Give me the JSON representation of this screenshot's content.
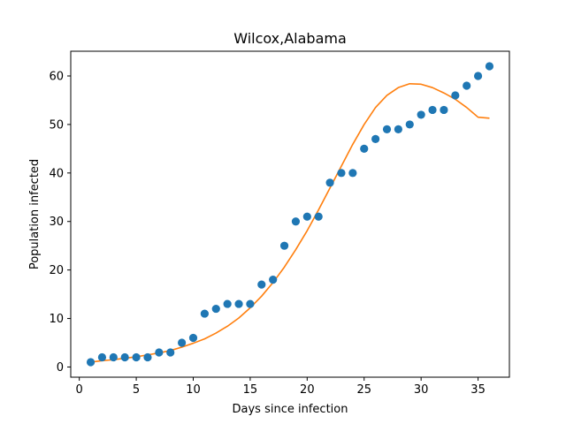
{
  "chart_data": {
    "type": "scatter",
    "title": "Wilcox,Alabama",
    "xlabel": "Days since infection",
    "ylabel": "Population infected",
    "xlim": [
      -0.75,
      37.75
    ],
    "ylim": [
      -2.1,
      65.1
    ],
    "xticks": [
      0,
      5,
      10,
      15,
      20,
      25,
      30,
      35
    ],
    "yticks": [
      0,
      10,
      20,
      30,
      40,
      50,
      60
    ],
    "grid": false,
    "colors": {
      "points": "#1f77b4",
      "fit": "#ff7f0e"
    },
    "series": [
      {
        "kind": "scatter",
        "x": [
          1,
          2,
          3,
          4,
          5,
          6,
          7,
          8,
          9,
          10,
          11,
          12,
          13,
          14,
          15,
          16,
          17,
          18,
          19,
          20,
          21,
          22,
          23,
          24,
          25,
          26,
          27,
          28,
          29,
          30,
          31,
          32,
          33,
          34,
          35,
          36
        ],
        "y": [
          1,
          2,
          2,
          2,
          2,
          2,
          3,
          3,
          5,
          6,
          11,
          12,
          13,
          13,
          13,
          17,
          18,
          25,
          30,
          31,
          31,
          38,
          40,
          40,
          45,
          47,
          49,
          49,
          50,
          52,
          53,
          53,
          56,
          58,
          60,
          62
        ]
      },
      {
        "kind": "line",
        "x": [
          1,
          2,
          3,
          4,
          5,
          6,
          7,
          8,
          9,
          10,
          11,
          12,
          13,
          14,
          15,
          16,
          17,
          18,
          19,
          20,
          21,
          22,
          23,
          24,
          25,
          26,
          27,
          28,
          29,
          30,
          31,
          32,
          33,
          34,
          35,
          36
        ],
        "y": [
          1.0,
          1.3,
          1.5,
          1.8,
          2.1,
          2.5,
          2.9,
          3.4,
          4.1,
          4.9,
          5.8,
          7.0,
          8.4,
          10.1,
          12.2,
          14.6,
          17.4,
          20.6,
          24.2,
          28.1,
          32.4,
          36.9,
          41.4,
          45.9,
          50.0,
          53.5,
          56.0,
          57.6,
          58.4,
          58.3,
          57.6,
          56.5,
          55.2,
          53.5,
          51.5,
          51.3
        ]
      }
    ]
  }
}
